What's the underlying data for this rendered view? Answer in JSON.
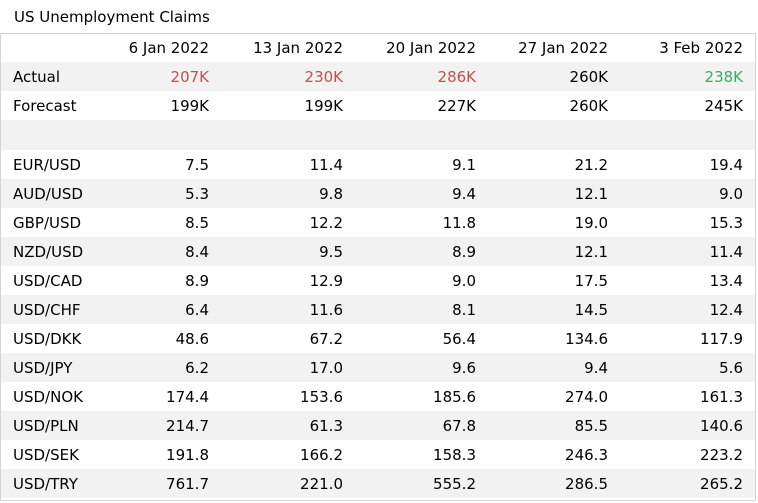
{
  "title": "US Unemployment Claims",
  "colors": {
    "up": "#c0504d",
    "down": "#3ea864",
    "shade": "#f2f2f2",
    "border": "#d4d4d4"
  },
  "columns": [
    "6 Jan 2022",
    "13 Jan 2022",
    "20 Jan 2022",
    "27 Jan 2022",
    "3 Feb 2022"
  ],
  "actual": {
    "label": "Actual",
    "values": [
      "207K",
      "230K",
      "286K",
      "260K",
      "238K"
    ],
    "tones": [
      "up",
      "up",
      "up",
      "neutral",
      "down"
    ]
  },
  "forecast": {
    "label": "Forecast",
    "values": [
      "199K",
      "199K",
      "227K",
      "260K",
      "245K"
    ]
  },
  "pairs": [
    {
      "name": "EUR/USD",
      "values": [
        "7.5",
        "11.4",
        "9.1",
        "21.2",
        "19.4"
      ]
    },
    {
      "name": "AUD/USD",
      "values": [
        "5.3",
        "9.8",
        "9.4",
        "12.1",
        "9.0"
      ]
    },
    {
      "name": "GBP/USD",
      "values": [
        "8.5",
        "12.2",
        "11.8",
        "19.0",
        "15.3"
      ]
    },
    {
      "name": "NZD/USD",
      "values": [
        "8.4",
        "9.5",
        "8.9",
        "12.1",
        "11.4"
      ]
    },
    {
      "name": "USD/CAD",
      "values": [
        "8.9",
        "12.9",
        "9.0",
        "17.5",
        "13.4"
      ]
    },
    {
      "name": "USD/CHF",
      "values": [
        "6.4",
        "11.6",
        "8.1",
        "14.5",
        "12.4"
      ]
    },
    {
      "name": "USD/DKK",
      "values": [
        "48.6",
        "67.2",
        "56.4",
        "134.6",
        "117.9"
      ]
    },
    {
      "name": "USD/JPY",
      "values": [
        "6.2",
        "17.0",
        "9.6",
        "9.4",
        "5.6"
      ]
    },
    {
      "name": "USD/NOK",
      "values": [
        "174.4",
        "153.6",
        "185.6",
        "274.0",
        "161.3"
      ]
    },
    {
      "name": "USD/PLN",
      "values": [
        "214.7",
        "61.3",
        "67.8",
        "85.5",
        "140.6"
      ]
    },
    {
      "name": "USD/SEK",
      "values": [
        "191.8",
        "166.2",
        "158.3",
        "246.3",
        "223.2"
      ]
    },
    {
      "name": "USD/TRY",
      "values": [
        "761.7",
        "221.0",
        "555.2",
        "286.5",
        "265.2"
      ]
    }
  ]
}
